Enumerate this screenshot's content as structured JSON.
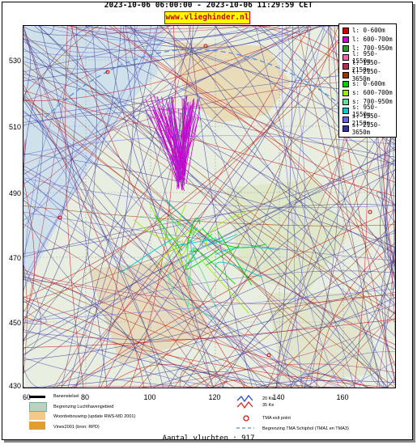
{
  "header": {
    "title": "2023-10-06 06:00:00 - 2023-10-06 11:29:59 CET",
    "brand": "www.vlieghinder.nl"
  },
  "map": {
    "y_ticks": [
      "530",
      "510",
      "490",
      "470",
      "450",
      "430"
    ],
    "x_ticks": [
      "60",
      "80",
      "100",
      "120",
      "140",
      "160"
    ]
  },
  "legend": {
    "items": [
      {
        "label": "l: 0-600m",
        "color": "#cc0000"
      },
      {
        "label": "l: 600-700m",
        "color": "#cc00cc"
      },
      {
        "label": "l: 700-950m",
        "color": "#339933"
      },
      {
        "label": "l: 950-1550m",
        "color": "#ee66aa"
      },
      {
        "label": "l: 1550-2150m",
        "color": "#aa3355"
      },
      {
        "label": "l: 2150-3650m",
        "color": "#993300"
      },
      {
        "label": "s: 0-600m",
        "color": "#00cc00"
      },
      {
        "label": "s: 600-700m",
        "color": "#99ee00"
      },
      {
        "label": "s: 700-950m",
        "color": "#66dd99"
      },
      {
        "label": "s: 950-1550m",
        "color": "#00cccc"
      },
      {
        "label": "s: 1550-2150m",
        "color": "#6666dd"
      },
      {
        "label": "s: 2150-3650m",
        "color": "#333399"
      }
    ]
  },
  "bottom_legend": {
    "runway": "Banenstelsel",
    "airport_boundary": "Begrenzing Luchthavengebied",
    "housing": "Woonbebouwing (update RWS-MD 2001)",
    "vinex": "Vinex2001 (bron: RPD)",
    "contour_20": "20 Ke",
    "contour_35": "35 Ke",
    "tma_exit": "TMA exit point",
    "tma_boundary": "Begrenzing TMA Schiphol  (TMA1 en TMA3)"
  },
  "footer": {
    "count": "Aantal vluchten : 917"
  }
}
